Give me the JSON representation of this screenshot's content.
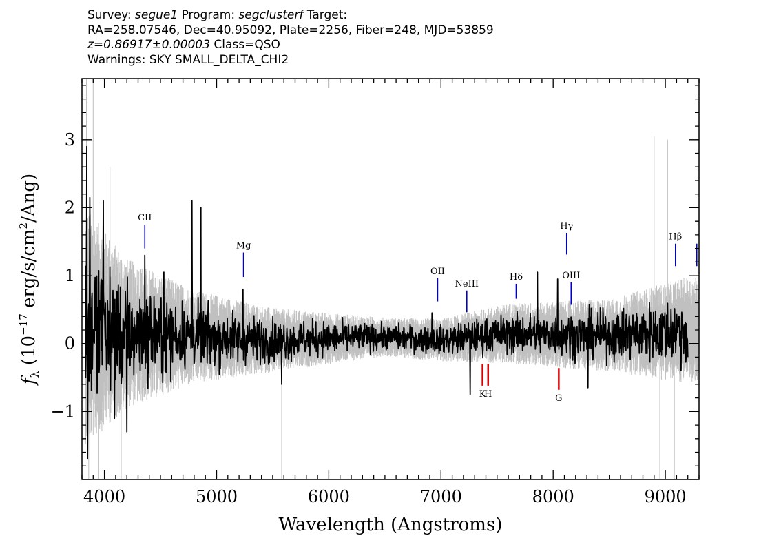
{
  "header": {
    "survey_prefix": "Survey: ",
    "survey": "segue1",
    "program_prefix": " Program: ",
    "program": "segclusterf",
    "target_suffix": " Target:",
    "line2": "RA=258.07546, Dec=40.95092, Plate=2256, Fiber=248, MJD=53859",
    "z": "z=0.86917±0.00003",
    "class": " Class=QSO",
    "warnings": "Warnings: SKY SMALL_DELTA_CHI2"
  },
  "chart_data": {
    "type": "line",
    "xlabel": "Wavelength (Angstroms)",
    "ylabel_parts": {
      "f": "f",
      "sub": "λ",
      "pre": " (10",
      "exp": "−17",
      "mid": " erg/s/cm",
      "exp2": "2",
      "post": "/Ang)"
    },
    "xlim": [
      3800,
      9300
    ],
    "ylim": [
      -2.0,
      3.9
    ],
    "xticks": [
      4000,
      5000,
      6000,
      7000,
      8000,
      9000
    ],
    "xtick_labels": [
      "4000",
      "5000",
      "6000",
      "7000",
      "8000",
      "9000"
    ],
    "yticks": [
      -1,
      0,
      1,
      2,
      3
    ],
    "ytick_labels": [
      "−1",
      "0",
      "1",
      "2",
      "3"
    ],
    "colors": {
      "flux": "#000000",
      "error": "#c0c0c0",
      "emission": "#0000cc",
      "absorption": "#dd0000"
    },
    "series": [
      {
        "name": "flux",
        "x_range": [
          3830,
          9200
        ],
        "envelope": [
          {
            "x": 3850,
            "mean": 0.25,
            "sigma": 0.55
          },
          {
            "x": 4200,
            "mean": 0.15,
            "sigma": 0.35
          },
          {
            "x": 4800,
            "mean": 0.1,
            "sigma": 0.22
          },
          {
            "x": 5500,
            "mean": 0.05,
            "sigma": 0.15
          },
          {
            "x": 6500,
            "mean": 0.1,
            "sigma": 0.09
          },
          {
            "x": 7000,
            "mean": 0.05,
            "sigma": 0.1
          },
          {
            "x": 7600,
            "mean": 0.15,
            "sigma": 0.14
          },
          {
            "x": 8500,
            "mean": 0.12,
            "sigma": 0.17
          },
          {
            "x": 9200,
            "mean": 0.2,
            "sigma": 0.25
          }
        ],
        "features": [
          {
            "x": 3843,
            "y": 2.9
          },
          {
            "x": 3850,
            "y": -1.7
          },
          {
            "x": 3870,
            "y": 2.15
          },
          {
            "x": 3990,
            "y": 2.1
          },
          {
            "x": 4090,
            "y": -1.1
          },
          {
            "x": 4200,
            "y": -1.3
          },
          {
            "x": 4360,
            "y": 1.3
          },
          {
            "x": 4530,
            "y": 1.05
          },
          {
            "x": 4780,
            "y": 2.1
          },
          {
            "x": 4860,
            "y": 2.0
          },
          {
            "x": 5235,
            "y": 0.8
          },
          {
            "x": 5580,
            "y": -0.6
          },
          {
            "x": 6920,
            "y": 0.45
          },
          {
            "x": 7260,
            "y": -0.75
          },
          {
            "x": 7860,
            "y": 1.05
          },
          {
            "x": 8040,
            "y": 0.95
          },
          {
            "x": 8310,
            "y": -0.65
          },
          {
            "x": 9200,
            "y": 1.1
          },
          {
            "x": 9200,
            "y": -0.2
          }
        ]
      },
      {
        "name": "error",
        "x_range": [
          3830,
          9300
        ],
        "spikes": [
          {
            "x": 3840,
            "y": 3.9
          },
          {
            "x": 3860,
            "y": -2.0
          },
          {
            "x": 3900,
            "y": 3.9
          },
          {
            "x": 3950,
            "y": -2.0
          },
          {
            "x": 4050,
            "y": 2.6
          },
          {
            "x": 4150,
            "y": -2.0
          },
          {
            "x": 5580,
            "y": -2.0
          },
          {
            "x": 8900,
            "y": 3.05
          },
          {
            "x": 8950,
            "y": -2.0
          },
          {
            "x": 9020,
            "y": 3.0
          },
          {
            "x": 9080,
            "y": -2.0
          }
        ]
      }
    ],
    "emission_lines": [
      {
        "label": "CII",
        "x": 4360,
        "y_top": 1.75,
        "y_bottom": 1.4
      },
      {
        "label": "Mg",
        "x": 5240,
        "y_top": 1.34,
        "y_bottom": 0.98
      },
      {
        "label": "OII",
        "x": 6970,
        "y_top": 0.96,
        "y_bottom": 0.62
      },
      {
        "label": "NeIII",
        "x": 7230,
        "y_top": 0.78,
        "y_bottom": 0.46
      },
      {
        "label": "Hδ",
        "x": 7670,
        "y_top": 0.88,
        "y_bottom": 0.66
      },
      {
        "label": "Hγ",
        "x": 8120,
        "y_top": 1.63,
        "y_bottom": 1.31
      },
      {
        "label": "OIII",
        "x": 8160,
        "y_top": 0.9,
        "y_bottom": 0.57
      },
      {
        "label": "Hβ",
        "x": 9090,
        "y_top": 1.47,
        "y_bottom": 1.14
      },
      {
        "label": "",
        "x": 9280,
        "y_top": 1.47,
        "y_bottom": 1.14
      }
    ],
    "absorption_lines": [
      {
        "label": "K",
        "x": 7370,
        "y_top": -0.3,
        "y_bottom": -0.62
      },
      {
        "label": "H",
        "x": 7420,
        "y_top": -0.3,
        "y_bottom": -0.62
      },
      {
        "label": "G",
        "x": 8050,
        "y_top": -0.36,
        "y_bottom": -0.68
      }
    ]
  }
}
